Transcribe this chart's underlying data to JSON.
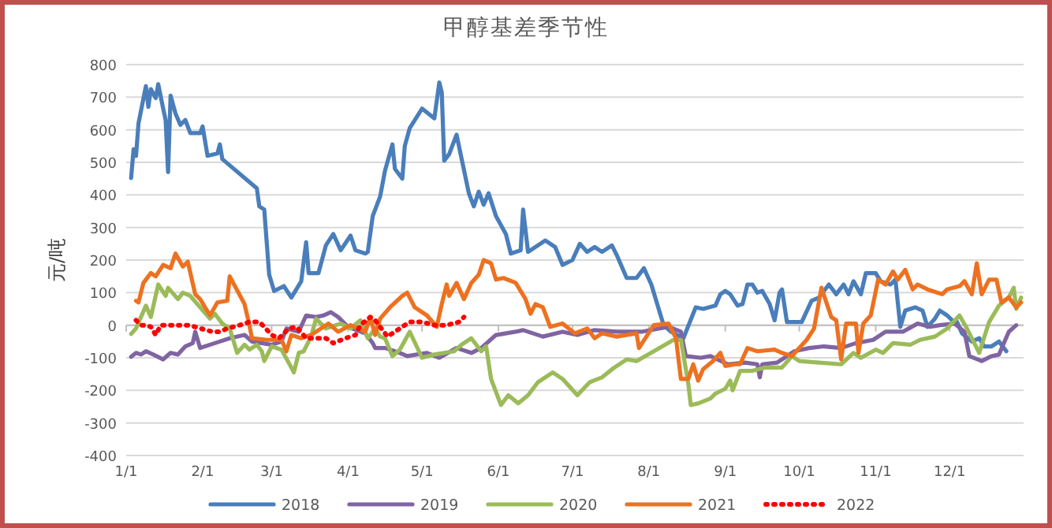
{
  "chart_data": {
    "type": "line",
    "title": "甲醇基差季节性",
    "ylabel": "元/吨",
    "xlim": [
      "--01-01",
      "--12-31"
    ],
    "xticks": [
      {
        "value": "--01-01",
        "label": "1/1"
      },
      {
        "value": "--02-01",
        "label": "2/1"
      },
      {
        "value": "--03-01",
        "label": "3/1"
      },
      {
        "value": "--04-01",
        "label": "4/1"
      },
      {
        "value": "--05-01",
        "label": "5/1"
      },
      {
        "value": "--06-01",
        "label": "6/1"
      },
      {
        "value": "--07-01",
        "label": "7/1"
      },
      {
        "value": "--08-01",
        "label": "8/1"
      },
      {
        "value": "--09-01",
        "label": "9/1"
      },
      {
        "value": "--10-01",
        "label": "10/1"
      },
      {
        "value": "--11-01",
        "label": "11/1"
      },
      {
        "value": "--12-01",
        "label": "12/1"
      }
    ],
    "ylim": [
      -400,
      800
    ],
    "yticks": [
      -400,
      -300,
      -200,
      -100,
      0,
      100,
      200,
      300,
      400,
      500,
      600,
      700,
      800
    ],
    "grid": "y",
    "legend": "bottom",
    "series": [
      {
        "name": "2018",
        "color": "#4a7ebb",
        "x": [
          "--01-03",
          "--01-04",
          "--01-05",
          "--01-06",
          "--01-09",
          "--01-10",
          "--01-11",
          "--01-13",
          "--01-14",
          "--01-16",
          "--01-17",
          "--01-18",
          "--01-19",
          "--01-21",
          "--01-23",
          "--01-25",
          "--01-27",
          "--01-31",
          "--02-01",
          "--02-03",
          "--02-07",
          "--02-08",
          "--02-09",
          "--02-23",
          "--02-24",
          "--02-26",
          "--02-28",
          "--03-02",
          "--03-06",
          "--03-09",
          "--03-13",
          "--03-15",
          "--03-16",
          "--03-20",
          "--03-23",
          "--03-26",
          "--03-29",
          "--04-02",
          "--04-04",
          "--04-08",
          "--04-09",
          "--04-11",
          "--04-14",
          "--04-16",
          "--04-19",
          "--04-20",
          "--04-23",
          "--04-24",
          "--04-26",
          "--05-01",
          "--05-06",
          "--05-08",
          "--05-09",
          "--05-10",
          "--05-12",
          "--05-15",
          "--05-20",
          "--05-22",
          "--05-24",
          "--05-26",
          "--05-28",
          "--05-31",
          "--06-04",
          "--06-06",
          "--06-10",
          "--06-11",
          "--06-13",
          "--06-20",
          "--06-24",
          "--06-27",
          "--07-01",
          "--07-04",
          "--07-07",
          "--07-10",
          "--07-13",
          "--07-17",
          "--07-19",
          "--07-23",
          "--07-27",
          "--07-30",
          "--08-02",
          "--08-04",
          "--08-07",
          "--08-10",
          "--08-15",
          "--08-20",
          "--08-23",
          "--08-28",
          "--08-30",
          "--09-01",
          "--09-03",
          "--09-06",
          "--09-08",
          "--09-10",
          "--09-12",
          "--09-14",
          "--09-16",
          "--09-19",
          "--09-21",
          "--09-23",
          "--09-24",
          "--09-26",
          "--10-02",
          "--10-06",
          "--10-09",
          "--10-13",
          "--10-16",
          "--10-19",
          "--10-21",
          "--10-23",
          "--10-26",
          "--10-28",
          "--11-01",
          "--11-03",
          "--11-07",
          "--11-09",
          "--11-11",
          "--11-13",
          "--11-17",
          "--11-20",
          "--11-22",
          "--11-25",
          "--11-27",
          "--11-30",
          "--12-02",
          "--12-04",
          "--12-06",
          "--12-10",
          "--12-13",
          "--12-15",
          "--12-18",
          "--12-21",
          "--12-24"
        ],
        "values": [
          452,
          540,
          520,
          620,
          734,
          670,
          725,
          697,
          740,
          665,
          630,
          470,
          705,
          650,
          615,
          630,
          590,
          590,
          610,
          520,
          527,
          555,
          510,
          420,
          365,
          355,
          155,
          105,
          120,
          85,
          135,
          255,
          160,
          160,
          245,
          280,
          230,
          275,
          230,
          220,
          225,
          335,
          395,
          475,
          555,
          480,
          450,
          550,
          605,
          665,
          635,
          745,
          715,
          505,
          525,
          585,
          405,
          365,
          410,
          370,
          405,
          335,
          280,
          220,
          230,
          355,
          225,
          260,
          240,
          185,
          200,
          250,
          225,
          240,
          225,
          245,
          215,
          145,
          145,
          175,
          125,
          75,
          0,
          -20,
          -40,
          55,
          50,
          60,
          95,
          105,
          95,
          60,
          65,
          125,
          125,
          100,
          105,
          65,
          15,
          100,
          110,
          10,
          10,
          75,
          85,
          125,
          95,
          125,
          95,
          135,
          95,
          160,
          160,
          135,
          125,
          140,
          -5,
          45,
          55,
          45,
          -5,
          20,
          45,
          30,
          15,
          10,
          -25,
          -50,
          -40,
          -65,
          -65,
          -50,
          -80
        ]
      },
      {
        "name": "2019",
        "color": "#8064a2",
        "x": [
          "--01-03",
          "--01-05",
          "--01-07",
          "--01-09",
          "--01-12",
          "--01-16",
          "--01-19",
          "--01-22",
          "--01-25",
          "--01-28",
          "--01-29",
          "--01-31",
          "--02-06",
          "--02-12",
          "--02-18",
          "--02-21",
          "--02-25",
          "--03-01",
          "--03-05",
          "--03-07",
          "--03-12",
          "--03-15",
          "--03-19",
          "--03-22",
          "--03-25",
          "--03-28",
          "--04-01",
          "--04-08",
          "--04-11",
          "--04-12",
          "--04-16",
          "--04-22",
          "--04-25",
          "--05-03",
          "--05-08",
          "--05-15",
          "--05-21",
          "--05-25",
          "--05-31",
          "--06-08",
          "--06-11",
          "--06-19",
          "--06-27",
          "--07-03",
          "--07-10",
          "--07-19",
          "--07-29",
          "--08-09",
          "--08-14",
          "--08-16",
          "--08-22",
          "--08-26",
          "--09-02",
          "--09-09",
          "--09-14",
          "--09-15",
          "--09-16",
          "--09-22",
          "--09-29",
          "--10-05",
          "--10-11",
          "--10-18",
          "--10-24",
          "--10-31",
          "--11-05",
          "--11-12",
          "--11-18",
          "--11-23",
          "--11-27",
          "--12-03",
          "--12-07",
          "--12-09",
          "--12-14",
          "--12-18",
          "--12-21",
          "--12-25",
          "--12-28"
        ],
        "values": [
          -97,
          -85,
          -90,
          -80,
          -90,
          -105,
          -85,
          -90,
          -65,
          -55,
          -20,
          -70,
          -55,
          -40,
          -30,
          -50,
          -55,
          -60,
          -50,
          -10,
          -20,
          30,
          25,
          30,
          40,
          25,
          -5,
          -25,
          -55,
          -70,
          -70,
          -85,
          -95,
          -85,
          -100,
          -70,
          -85,
          -70,
          -30,
          -20,
          -15,
          -35,
          -20,
          -30,
          -15,
          -20,
          -20,
          -5,
          -20,
          -95,
          -100,
          -95,
          -120,
          -115,
          -120,
          -160,
          -120,
          -115,
          -80,
          -70,
          -65,
          -70,
          -55,
          -45,
          -20,
          -20,
          5,
          -5,
          0,
          5,
          -20,
          -95,
          -110,
          -95,
          -90,
          -20,
          0
        ]
      },
      {
        "name": "2020",
        "color": "#9bbb59",
        "x": [
          "--01-03",
          "--01-05",
          "--01-09",
          "--01-11",
          "--01-14",
          "--01-17",
          "--01-18",
          "--01-22",
          "--01-24",
          "--01-27",
          "--02-04",
          "--02-06",
          "--02-09",
          "--02-12",
          "--02-15",
          "--02-18",
          "--02-20",
          "--02-23",
          "--02-25",
          "--02-26",
          "--03-01",
          "--03-05",
          "--03-09",
          "--03-10",
          "--03-12",
          "--03-14",
          "--03-17",
          "--03-19",
          "--03-23",
          "--03-29",
          "--04-02",
          "--04-06",
          "--04-09",
          "--04-12",
          "--04-14",
          "--04-16",
          "--04-19",
          "--04-22",
          "--04-26",
          "--05-01",
          "--05-06",
          "--05-14",
          "--05-17",
          "--05-21",
          "--05-25",
          "--05-27",
          "--05-29",
          "--06-02",
          "--06-05",
          "--06-09",
          "--06-13",
          "--06-17",
          "--06-23",
          "--06-27",
          "--07-03",
          "--07-08",
          "--07-13",
          "--07-18",
          "--07-23",
          "--07-27",
          "--08-03",
          "--08-11",
          "--08-14",
          "--08-17",
          "--08-18",
          "--08-21",
          "--08-26",
          "--08-28",
          "--09-01",
          "--09-03",
          "--09-04",
          "--09-07",
          "--09-12",
          "--09-17",
          "--09-24",
          "--09-28",
          "--10-01",
          "--10-09",
          "--10-18",
          "--10-23",
          "--10-26",
          "--11-01",
          "--11-04",
          "--11-08",
          "--11-15",
          "--11-19",
          "--11-25",
          "--11-30",
          "--12-05",
          "--12-08",
          "--12-13",
          "--12-17",
          "--12-21",
          "--12-25",
          "--12-27",
          "--12-28",
          "--12-30"
        ],
        "values": [
          -27,
          -10,
          60,
          25,
          125,
          90,
          115,
          80,
          100,
          90,
          20,
          35,
          5,
          -10,
          -85,
          -60,
          -75,
          -60,
          -80,
          -110,
          -65,
          -75,
          -130,
          -145,
          -85,
          -80,
          -35,
          20,
          -10,
          5,
          -10,
          15,
          -40,
          -10,
          -35,
          -40,
          -95,
          -75,
          -20,
          -100,
          -90,
          -80,
          -60,
          -40,
          -80,
          -65,
          -165,
          -245,
          -215,
          -240,
          -215,
          -175,
          -145,
          -165,
          -215,
          -175,
          -160,
          -130,
          -105,
          -110,
          -80,
          -45,
          -45,
          -180,
          -245,
          -240,
          -225,
          -210,
          -195,
          -170,
          -200,
          -140,
          -140,
          -130,
          -130,
          -95,
          -110,
          -115,
          -120,
          -85,
          -100,
          -75,
          -85,
          -55,
          -60,
          -45,
          -35,
          -10,
          30,
          -10,
          -85,
          10,
          60,
          85,
          115,
          50,
          85
        ]
      },
      {
        "name": "2021",
        "color": "#ed7120",
        "x": [
          "--01-05",
          "--01-06",
          "--01-08",
          "--01-11",
          "--01-13",
          "--01-16",
          "--01-19",
          "--01-21",
          "--01-24",
          "--01-26",
          "--01-29",
          "--01-31",
          "--02-04",
          "--02-07",
          "--02-11",
          "--02-12",
          "--02-18",
          "--02-20",
          "--02-21",
          "--02-27",
          "--03-05",
          "--03-07",
          "--03-09",
          "--03-13",
          "--03-17",
          "--03-24",
          "--03-28",
          "--04-02",
          "--04-08",
          "--04-10",
          "--04-12",
          "--04-14",
          "--04-18",
          "--04-23",
          "--04-25",
          "--04-28",
          "--05-03",
          "--05-07",
          "--05-09",
          "--05-11",
          "--05-12",
          "--05-15",
          "--05-18",
          "--05-21",
          "--05-24",
          "--05-26",
          "--05-29",
          "--05-31",
          "--06-03",
          "--06-08",
          "--06-12",
          "--06-14",
          "--06-16",
          "--06-19",
          "--06-22",
          "--06-27",
          "--07-02",
          "--07-07",
          "--07-10",
          "--07-13",
          "--07-19",
          "--07-27",
          "--07-28",
          "--08-03",
          "--08-09",
          "--08-12",
          "--08-14",
          "--08-17",
          "--08-19",
          "--08-21",
          "--08-23",
          "--08-27",
          "--08-30",
          "--09-01",
          "--09-05",
          "--09-07",
          "--09-10",
          "--09-14",
          "--09-21",
          "--09-24",
          "--09-28",
          "--10-04",
          "--10-07",
          "--10-10",
          "--10-14",
          "--10-16",
          "--10-18",
          "--10-20",
          "--10-24",
          "--10-25",
          "--10-27",
          "--10-30",
          "--11-02",
          "--11-05",
          "--11-08",
          "--11-10",
          "--11-13",
          "--11-16",
          "--11-18",
          "--11-22",
          "--11-28",
          "--11-30",
          "--12-05",
          "--12-07",
          "--12-10",
          "--12-12",
          "--12-14",
          "--12-17",
          "--12-20",
          "--12-22",
          "--12-25",
          "--12-28",
          "--12-30"
        ],
        "values": [
          75,
          70,
          130,
          160,
          150,
          185,
          175,
          220,
          180,
          195,
          95,
          80,
          30,
          70,
          75,
          150,
          65,
          0,
          -40,
          -45,
          -45,
          -80,
          -30,
          -40,
          -30,
          5,
          -20,
          0,
          -20,
          25,
          -30,
          20,
          55,
          90,
          100,
          55,
          30,
          -5,
          65,
          125,
          90,
          130,
          80,
          130,
          155,
          200,
          190,
          140,
          145,
          130,
          80,
          35,
          65,
          55,
          -5,
          5,
          -25,
          -10,
          -40,
          -25,
          -35,
          -25,
          -70,
          0,
          5,
          -40,
          -165,
          -165,
          -120,
          -170,
          -135,
          -110,
          -85,
          -125,
          -120,
          -120,
          -70,
          -80,
          -75,
          -85,
          -95,
          -45,
          -10,
          115,
          25,
          15,
          -105,
          5,
          5,
          -85,
          5,
          30,
          140,
          125,
          165,
          140,
          170,
          110,
          125,
          110,
          95,
          110,
          120,
          135,
          95,
          190,
          95,
          140,
          140,
          70,
          85,
          55,
          70
        ]
      },
      {
        "name": "2022",
        "color": "#ff0000",
        "line_style": "dotted",
        "x": [
          "--01-05",
          "--01-07",
          "--01-09",
          "--01-11",
          "--01-13",
          "--01-15",
          "--01-20",
          "--01-26",
          "--01-29",
          "--01-31",
          "--02-05",
          "--02-08",
          "--02-11",
          "--02-16",
          "--02-20",
          "--02-24",
          "--02-26",
          "--03-01",
          "--03-04",
          "--03-08",
          "--03-11",
          "--03-15",
          "--03-19",
          "--03-23",
          "--03-26",
          "--03-31",
          "--04-04",
          "--04-06",
          "--04-10",
          "--04-12",
          "--04-14",
          "--04-17",
          "--04-20",
          "--04-26",
          "--05-01",
          "--05-06",
          "--05-11",
          "--05-16",
          "--05-18"
        ],
        "values": [
          15,
          0,
          0,
          -5,
          -30,
          0,
          0,
          0,
          -5,
          -10,
          -20,
          -20,
          -10,
          0,
          10,
          10,
          -5,
          -30,
          -40,
          -10,
          -5,
          -40,
          -40,
          -40,
          -55,
          -40,
          -30,
          0,
          25,
          15,
          -5,
          -35,
          -20,
          10,
          10,
          0,
          0,
          10,
          25
        ]
      }
    ]
  }
}
